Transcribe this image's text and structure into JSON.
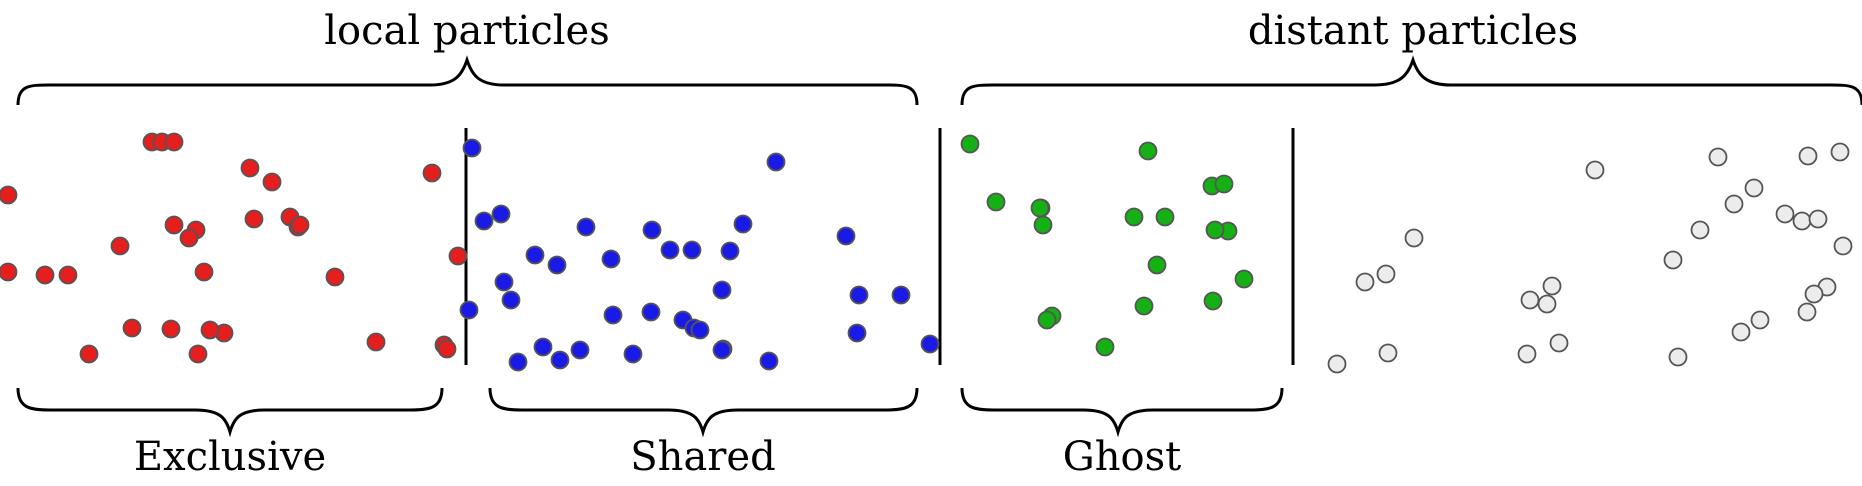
{
  "labels": {
    "local": "local particles",
    "distant": "distant particles",
    "exclusive": "Exclusive",
    "shared": "Shared",
    "ghost": "Ghost"
  },
  "colors": {
    "exclusive": "#e61e1e",
    "shared": "#1a1ae6",
    "ghost": "#14b014",
    "other": "#ececec"
  },
  "particles": {
    "exclusive_count": 30,
    "shared_count": 35,
    "ghost_count": 19,
    "other_count": 28
  }
}
